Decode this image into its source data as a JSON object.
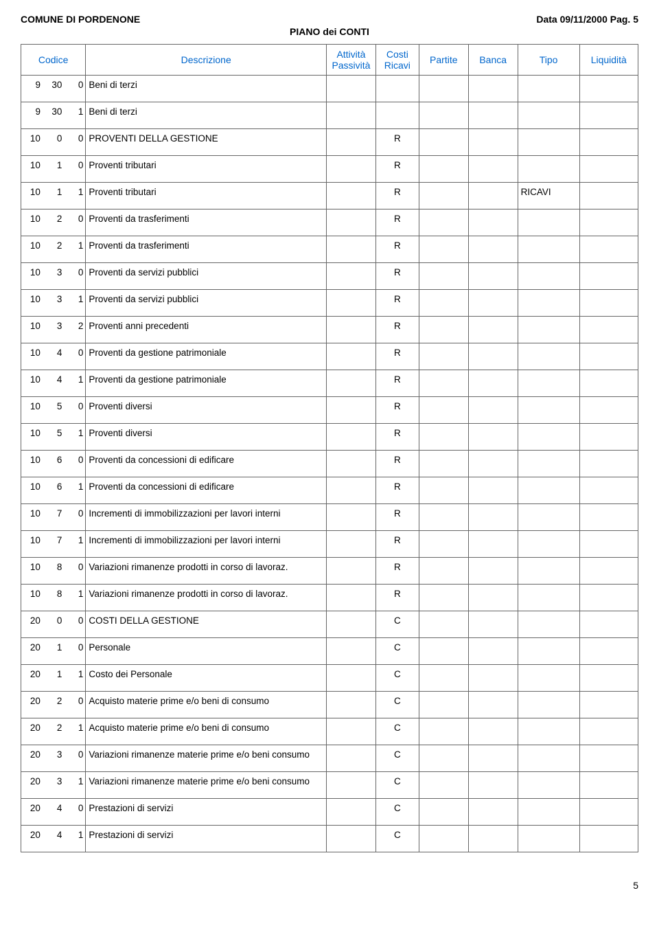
{
  "header": {
    "left": "COMUNE DI PORDENONE",
    "right": "Data 09/11/2000 Pag. 5",
    "center": "PIANO dei CONTI"
  },
  "columns": {
    "codice": "Codice",
    "descrizione": "Descrizione",
    "attivita": "Attività Passività",
    "costi": "Costi Ricavi",
    "partite": "Partite",
    "banca": "Banca",
    "tipo": "Tipo",
    "liquidita": "Liquidità"
  },
  "rows": [
    {
      "a": "9",
      "b": "30",
      "c": "0",
      "desc": "Beni di terzi",
      "ap": "",
      "cr": "",
      "pa": "",
      "ba": "",
      "ti": "",
      "li": ""
    },
    {
      "a": "9",
      "b": "30",
      "c": "1",
      "desc": "Beni di terzi",
      "ap": "",
      "cr": "",
      "pa": "",
      "ba": "",
      "ti": "",
      "li": ""
    },
    {
      "a": "10",
      "b": "0",
      "c": "0",
      "desc": "PROVENTI DELLA GESTIONE",
      "ap": "",
      "cr": "R",
      "pa": "",
      "ba": "",
      "ti": "",
      "li": ""
    },
    {
      "a": "10",
      "b": "1",
      "c": "0",
      "desc": "Proventi tributari",
      "ap": "",
      "cr": "R",
      "pa": "",
      "ba": "",
      "ti": "",
      "li": ""
    },
    {
      "a": "10",
      "b": "1",
      "c": "1",
      "desc": "Proventi tributari",
      "ap": "",
      "cr": "R",
      "pa": "",
      "ba": "",
      "ti": "RICAVI",
      "li": ""
    },
    {
      "a": "10",
      "b": "2",
      "c": "0",
      "desc": "Proventi da trasferimenti",
      "ap": "",
      "cr": "R",
      "pa": "",
      "ba": "",
      "ti": "",
      "li": ""
    },
    {
      "a": "10",
      "b": "2",
      "c": "1",
      "desc": "Proventi da trasferimenti",
      "ap": "",
      "cr": "R",
      "pa": "",
      "ba": "",
      "ti": "",
      "li": ""
    },
    {
      "a": "10",
      "b": "3",
      "c": "0",
      "desc": "Proventi da servizi pubblici",
      "ap": "",
      "cr": "R",
      "pa": "",
      "ba": "",
      "ti": "",
      "li": ""
    },
    {
      "a": "10",
      "b": "3",
      "c": "1",
      "desc": "Proventi da servizi pubblici",
      "ap": "",
      "cr": "R",
      "pa": "",
      "ba": "",
      "ti": "",
      "li": ""
    },
    {
      "a": "10",
      "b": "3",
      "c": "2",
      "desc": "Proventi anni precedenti",
      "ap": "",
      "cr": "R",
      "pa": "",
      "ba": "",
      "ti": "",
      "li": ""
    },
    {
      "a": "10",
      "b": "4",
      "c": "0",
      "desc": "Proventi da gestione patrimoniale",
      "ap": "",
      "cr": "R",
      "pa": "",
      "ba": "",
      "ti": "",
      "li": ""
    },
    {
      "a": "10",
      "b": "4",
      "c": "1",
      "desc": "Proventi da gestione patrimoniale",
      "ap": "",
      "cr": "R",
      "pa": "",
      "ba": "",
      "ti": "",
      "li": ""
    },
    {
      "a": "10",
      "b": "5",
      "c": "0",
      "desc": "Proventi diversi",
      "ap": "",
      "cr": "R",
      "pa": "",
      "ba": "",
      "ti": "",
      "li": ""
    },
    {
      "a": "10",
      "b": "5",
      "c": "1",
      "desc": "Proventi diversi",
      "ap": "",
      "cr": "R",
      "pa": "",
      "ba": "",
      "ti": "",
      "li": ""
    },
    {
      "a": "10",
      "b": "6",
      "c": "0",
      "desc": "Proventi da concessioni di edificare",
      "ap": "",
      "cr": "R",
      "pa": "",
      "ba": "",
      "ti": "",
      "li": ""
    },
    {
      "a": "10",
      "b": "6",
      "c": "1",
      "desc": "Proventi da concessioni di edificare",
      "ap": "",
      "cr": "R",
      "pa": "",
      "ba": "",
      "ti": "",
      "li": ""
    },
    {
      "a": "10",
      "b": "7",
      "c": "0",
      "desc": "Incrementi di immobilizzazioni per lavori interni",
      "ap": "",
      "cr": "R",
      "pa": "",
      "ba": "",
      "ti": "",
      "li": ""
    },
    {
      "a": "10",
      "b": "7",
      "c": "1",
      "desc": "Incrementi di immobilizzazioni per lavori interni",
      "ap": "",
      "cr": "R",
      "pa": "",
      "ba": "",
      "ti": "",
      "li": ""
    },
    {
      "a": "10",
      "b": "8",
      "c": "0",
      "desc": "Variazioni rimanenze prodotti in corso di lavoraz.",
      "ap": "",
      "cr": "R",
      "pa": "",
      "ba": "",
      "ti": "",
      "li": ""
    },
    {
      "a": "10",
      "b": "8",
      "c": "1",
      "desc": "Variazioni rimanenze prodotti in corso di lavoraz.",
      "ap": "",
      "cr": "R",
      "pa": "",
      "ba": "",
      "ti": "",
      "li": ""
    },
    {
      "a": "20",
      "b": "0",
      "c": "0",
      "desc": "COSTI DELLA GESTIONE",
      "ap": "",
      "cr": "C",
      "pa": "",
      "ba": "",
      "ti": "",
      "li": ""
    },
    {
      "a": "20",
      "b": "1",
      "c": "0",
      "desc": "Personale",
      "ap": "",
      "cr": "C",
      "pa": "",
      "ba": "",
      "ti": "",
      "li": ""
    },
    {
      "a": "20",
      "b": "1",
      "c": "1",
      "desc": "Costo dei Personale",
      "ap": "",
      "cr": "C",
      "pa": "",
      "ba": "",
      "ti": "",
      "li": ""
    },
    {
      "a": "20",
      "b": "2",
      "c": "0",
      "desc": "Acquisto materie prime e/o beni di consumo",
      "ap": "",
      "cr": "C",
      "pa": "",
      "ba": "",
      "ti": "",
      "li": ""
    },
    {
      "a": "20",
      "b": "2",
      "c": "1",
      "desc": "Acquisto materie prime e/o beni di consumo",
      "ap": "",
      "cr": "C",
      "pa": "",
      "ba": "",
      "ti": "",
      "li": ""
    },
    {
      "a": "20",
      "b": "3",
      "c": "0",
      "desc": "Variazioni rimanenze materie prime e/o beni consumo",
      "ap": "",
      "cr": "C",
      "pa": "",
      "ba": "",
      "ti": "",
      "li": ""
    },
    {
      "a": "20",
      "b": "3",
      "c": "1",
      "desc": "Variazioni rimanenze materie prime e/o beni consumo",
      "ap": "",
      "cr": "C",
      "pa": "",
      "ba": "",
      "ti": "",
      "li": ""
    },
    {
      "a": "20",
      "b": "4",
      "c": "0",
      "desc": "Prestazioni di servizi",
      "ap": "",
      "cr": "C",
      "pa": "",
      "ba": "",
      "ti": "",
      "li": ""
    },
    {
      "a": "20",
      "b": "4",
      "c": "1",
      "desc": "Prestazioni di servizi",
      "ap": "",
      "cr": "C",
      "pa": "",
      "ba": "",
      "ti": "",
      "li": ""
    }
  ],
  "footer": {
    "page": "5"
  }
}
